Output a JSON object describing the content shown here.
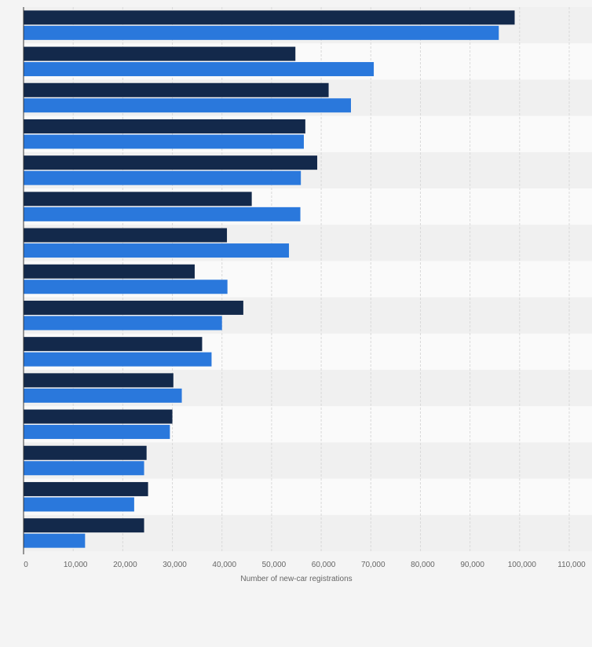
{
  "colors": {
    "background": "#f4f4f4",
    "band_light": "#fafafa",
    "band_dark": "#f0f0f0",
    "grid": "#d9d9d9",
    "axis": "#333333",
    "series_1": "#13294b",
    "series_2": "#2a78dc"
  },
  "chart_data": {
    "type": "bar",
    "orientation": "horizontal",
    "categories": [
      "",
      "",
      "",
      "",
      "",
      "",
      "",
      "",
      "",
      "",
      "",
      "",
      "",
      "",
      ""
    ],
    "series": [
      {
        "values": [
          99000,
          54800,
          61500,
          56800,
          59200,
          46000,
          41000,
          34500,
          44300,
          36000,
          30200,
          30000,
          24800,
          25100,
          24300
        ]
      },
      {
        "values": [
          95800,
          70600,
          66000,
          56500,
          55900,
          55800,
          53500,
          41100,
          40000,
          37900,
          31900,
          29500,
          24300,
          22300,
          12400
        ]
      }
    ],
    "xlabel": "Number of new-car registrations",
    "xlim": [
      0,
      110000
    ],
    "ticks": [
      {
        "value": 0,
        "label": "0"
      },
      {
        "value": 10000,
        "label": "10,000"
      },
      {
        "value": 20000,
        "label": "20,000"
      },
      {
        "value": 30000,
        "label": "30,000"
      },
      {
        "value": 40000,
        "label": "40,000"
      },
      {
        "value": 50000,
        "label": "50,000"
      },
      {
        "value": 60000,
        "label": "60,000"
      },
      {
        "value": 70000,
        "label": "70,000"
      },
      {
        "value": 80000,
        "label": "80,000"
      },
      {
        "value": 90000,
        "label": "90,000"
      },
      {
        "value": 100000,
        "label": "100,000"
      },
      {
        "value": 110000,
        "label": "110,000"
      }
    ],
    "grid": true,
    "legend": "none"
  }
}
